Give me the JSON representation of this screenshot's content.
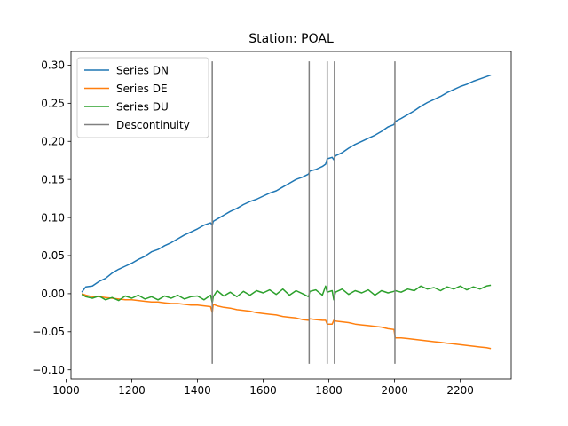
{
  "chart_data": {
    "type": "line",
    "title": "Station: POAL",
    "xlabel": "",
    "ylabel": "",
    "xlim": [
      1015,
      2355
    ],
    "ylim": [
      -0.112,
      0.318
    ],
    "x_ticks": [
      1000,
      1200,
      1400,
      1600,
      1800,
      2000,
      2200
    ],
    "x_tick_labels": [
      "1000",
      "1200",
      "1400",
      "1600",
      "1800",
      "2000",
      "2200"
    ],
    "y_ticks": [
      -0.1,
      -0.05,
      0.0,
      0.05,
      0.1,
      0.15,
      0.2,
      0.25,
      0.3
    ],
    "y_tick_labels": [
      "−0.10",
      "−0.05",
      "0.00",
      "0.05",
      "0.10",
      "0.15",
      "0.20",
      "0.25",
      "0.30"
    ],
    "grid": false,
    "legend_position": "top-left",
    "series": [
      {
        "name": "Series DN",
        "color": "#1f77b4",
        "points": [
          [
            1048,
            0.002
          ],
          [
            1060,
            0.009
          ],
          [
            1080,
            0.01
          ],
          [
            1100,
            0.016
          ],
          [
            1120,
            0.02
          ],
          [
            1140,
            0.027
          ],
          [
            1160,
            0.032
          ],
          [
            1180,
            0.036
          ],
          [
            1200,
            0.04
          ],
          [
            1220,
            0.045
          ],
          [
            1240,
            0.049
          ],
          [
            1260,
            0.055
          ],
          [
            1280,
            0.058
          ],
          [
            1300,
            0.063
          ],
          [
            1320,
            0.067
          ],
          [
            1340,
            0.072
          ],
          [
            1360,
            0.077
          ],
          [
            1380,
            0.081
          ],
          [
            1400,
            0.085
          ],
          [
            1420,
            0.09
          ],
          [
            1440,
            0.093
          ],
          [
            1445,
            0.09
          ],
          [
            1448,
            0.095
          ],
          [
            1460,
            0.098
          ],
          [
            1480,
            0.103
          ],
          [
            1500,
            0.108
          ],
          [
            1520,
            0.112
          ],
          [
            1540,
            0.117
          ],
          [
            1560,
            0.121
          ],
          [
            1580,
            0.124
          ],
          [
            1600,
            0.128
          ],
          [
            1620,
            0.132
          ],
          [
            1640,
            0.135
          ],
          [
            1660,
            0.14
          ],
          [
            1680,
            0.145
          ],
          [
            1700,
            0.15
          ],
          [
            1720,
            0.153
          ],
          [
            1738,
            0.157
          ],
          [
            1742,
            0.161
          ],
          [
            1760,
            0.163
          ],
          [
            1780,
            0.167
          ],
          [
            1790,
            0.17
          ],
          [
            1795,
            0.177
          ],
          [
            1810,
            0.179
          ],
          [
            1815,
            0.176
          ],
          [
            1820,
            0.181
          ],
          [
            1840,
            0.185
          ],
          [
            1860,
            0.191
          ],
          [
            1880,
            0.196
          ],
          [
            1900,
            0.2
          ],
          [
            1920,
            0.204
          ],
          [
            1940,
            0.208
          ],
          [
            1960,
            0.213
          ],
          [
            1980,
            0.219
          ],
          [
            1998,
            0.222
          ],
          [
            2002,
            0.226
          ],
          [
            2020,
            0.23
          ],
          [
            2040,
            0.235
          ],
          [
            2060,
            0.24
          ],
          [
            2080,
            0.246
          ],
          [
            2100,
            0.251
          ],
          [
            2120,
            0.255
          ],
          [
            2140,
            0.259
          ],
          [
            2160,
            0.264
          ],
          [
            2180,
            0.268
          ],
          [
            2200,
            0.272
          ],
          [
            2220,
            0.275
          ],
          [
            2240,
            0.279
          ],
          [
            2260,
            0.282
          ],
          [
            2280,
            0.285
          ],
          [
            2293,
            0.287
          ]
        ]
      },
      {
        "name": "Series DE",
        "color": "#ff7f0e",
        "points": [
          [
            1048,
            0.0
          ],
          [
            1060,
            -0.002
          ],
          [
            1080,
            -0.004
          ],
          [
            1100,
            -0.004
          ],
          [
            1120,
            -0.005
          ],
          [
            1140,
            -0.006
          ],
          [
            1160,
            -0.007
          ],
          [
            1180,
            -0.008
          ],
          [
            1200,
            -0.008
          ],
          [
            1220,
            -0.009
          ],
          [
            1240,
            -0.01
          ],
          [
            1260,
            -0.011
          ],
          [
            1280,
            -0.011
          ],
          [
            1300,
            -0.012
          ],
          [
            1320,
            -0.013
          ],
          [
            1340,
            -0.013
          ],
          [
            1360,
            -0.014
          ],
          [
            1380,
            -0.015
          ],
          [
            1400,
            -0.015
          ],
          [
            1420,
            -0.016
          ],
          [
            1440,
            -0.017
          ],
          [
            1445,
            -0.025
          ],
          [
            1448,
            -0.014
          ],
          [
            1460,
            -0.016
          ],
          [
            1480,
            -0.018
          ],
          [
            1500,
            -0.019
          ],
          [
            1520,
            -0.021
          ],
          [
            1540,
            -0.022
          ],
          [
            1560,
            -0.023
          ],
          [
            1580,
            -0.025
          ],
          [
            1600,
            -0.026
          ],
          [
            1620,
            -0.027
          ],
          [
            1640,
            -0.028
          ],
          [
            1660,
            -0.03
          ],
          [
            1680,
            -0.031
          ],
          [
            1700,
            -0.032
          ],
          [
            1720,
            -0.034
          ],
          [
            1738,
            -0.035
          ],
          [
            1742,
            -0.033
          ],
          [
            1760,
            -0.034
          ],
          [
            1780,
            -0.035
          ],
          [
            1790,
            -0.035
          ],
          [
            1795,
            -0.04
          ],
          [
            1810,
            -0.04
          ],
          [
            1815,
            -0.035
          ],
          [
            1820,
            -0.036
          ],
          [
            1840,
            -0.037
          ],
          [
            1860,
            -0.038
          ],
          [
            1880,
            -0.04
          ],
          [
            1900,
            -0.041
          ],
          [
            1920,
            -0.042
          ],
          [
            1940,
            -0.043
          ],
          [
            1960,
            -0.044
          ],
          [
            1980,
            -0.046
          ],
          [
            1998,
            -0.047
          ],
          [
            2002,
            -0.058
          ],
          [
            2020,
            -0.058
          ],
          [
            2040,
            -0.059
          ],
          [
            2060,
            -0.06
          ],
          [
            2080,
            -0.061
          ],
          [
            2100,
            -0.062
          ],
          [
            2120,
            -0.063
          ],
          [
            2140,
            -0.064
          ],
          [
            2160,
            -0.065
          ],
          [
            2180,
            -0.066
          ],
          [
            2200,
            -0.067
          ],
          [
            2220,
            -0.068
          ],
          [
            2240,
            -0.069
          ],
          [
            2260,
            -0.07
          ],
          [
            2280,
            -0.071
          ],
          [
            2293,
            -0.072
          ]
        ]
      },
      {
        "name": "Series DU",
        "color": "#2ca02c",
        "points": [
          [
            1048,
            -0.001
          ],
          [
            1060,
            -0.004
          ],
          [
            1080,
            -0.006
          ],
          [
            1100,
            -0.003
          ],
          [
            1120,
            -0.008
          ],
          [
            1140,
            -0.005
          ],
          [
            1160,
            -0.009
          ],
          [
            1180,
            -0.003
          ],
          [
            1200,
            -0.006
          ],
          [
            1220,
            -0.002
          ],
          [
            1240,
            -0.007
          ],
          [
            1260,
            -0.004
          ],
          [
            1280,
            -0.008
          ],
          [
            1300,
            -0.003
          ],
          [
            1320,
            -0.006
          ],
          [
            1340,
            -0.002
          ],
          [
            1360,
            -0.007
          ],
          [
            1380,
            -0.004
          ],
          [
            1400,
            -0.003
          ],
          [
            1420,
            -0.008
          ],
          [
            1440,
            -0.002
          ],
          [
            1445,
            -0.012
          ],
          [
            1448,
            -0.004
          ],
          [
            1460,
            0.004
          ],
          [
            1480,
            -0.003
          ],
          [
            1500,
            0.002
          ],
          [
            1520,
            -0.004
          ],
          [
            1540,
            0.003
          ],
          [
            1560,
            -0.002
          ],
          [
            1580,
            0.004
          ],
          [
            1600,
            0.001
          ],
          [
            1620,
            0.005
          ],
          [
            1640,
            -0.001
          ],
          [
            1660,
            0.006
          ],
          [
            1680,
            -0.002
          ],
          [
            1700,
            0.004
          ],
          [
            1720,
            0.0
          ],
          [
            1738,
            -0.004
          ],
          [
            1742,
            0.003
          ],
          [
            1760,
            0.005
          ],
          [
            1780,
            -0.002
          ],
          [
            1790,
            0.01
          ],
          [
            1795,
            0.002
          ],
          [
            1810,
            0.004
          ],
          [
            1815,
            -0.008
          ],
          [
            1820,
            0.002
          ],
          [
            1840,
            0.006
          ],
          [
            1860,
            -0.001
          ],
          [
            1880,
            0.004
          ],
          [
            1900,
            0.001
          ],
          [
            1920,
            0.005
          ],
          [
            1940,
            -0.002
          ],
          [
            1960,
            0.004
          ],
          [
            1980,
            0.001
          ],
          [
            1998,
            0.003
          ],
          [
            2002,
            0.004
          ],
          [
            2020,
            0.002
          ],
          [
            2040,
            0.006
          ],
          [
            2060,
            0.004
          ],
          [
            2080,
            0.01
          ],
          [
            2100,
            0.006
          ],
          [
            2120,
            0.008
          ],
          [
            2140,
            0.004
          ],
          [
            2160,
            0.009
          ],
          [
            2180,
            0.006
          ],
          [
            2200,
            0.01
          ],
          [
            2220,
            0.005
          ],
          [
            2240,
            0.009
          ],
          [
            2260,
            0.006
          ],
          [
            2280,
            0.01
          ],
          [
            2293,
            0.011
          ]
        ]
      }
    ],
    "discontinuity": {
      "name": "Descontinuity",
      "color": "#808080",
      "x": [
        1445,
        1740,
        1795,
        1817,
        2001
      ],
      "y_range": [
        -0.092,
        0.305
      ]
    }
  }
}
